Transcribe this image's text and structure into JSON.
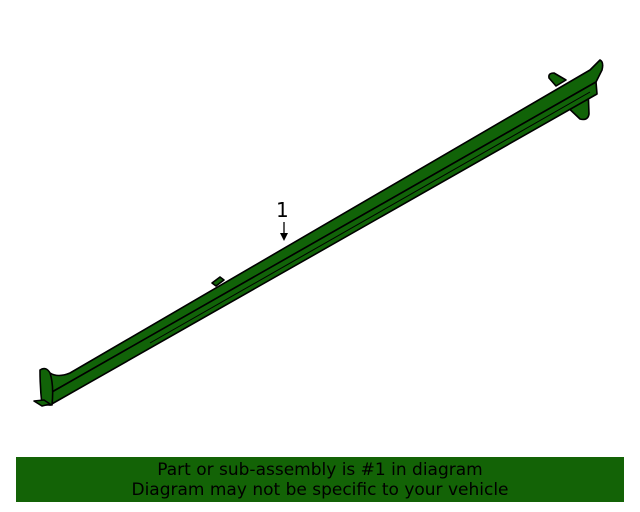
{
  "diagram": {
    "part_color": "#116308",
    "callouts": [
      {
        "label": "1"
      }
    ]
  },
  "banner": {
    "background": "#136306",
    "line1": "Part or sub-assembly is #1 in diagram",
    "line2": "Diagram may not be specific to your vehicle"
  }
}
